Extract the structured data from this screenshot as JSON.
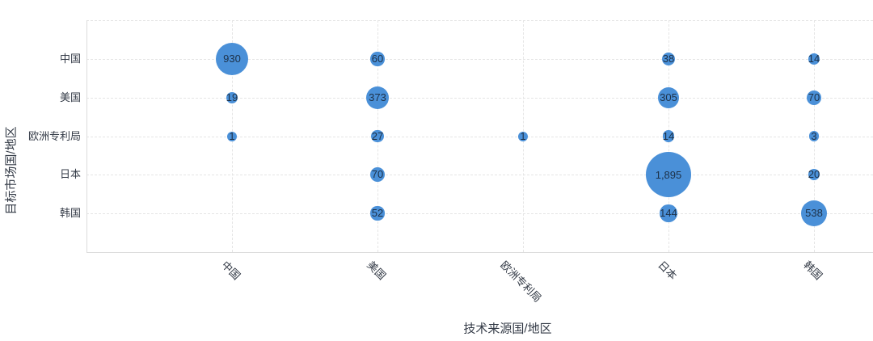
{
  "chart_data": {
    "type": "scatter",
    "subtype": "bubble-matrix",
    "title": "",
    "xlabel": "技术来源国/地区",
    "ylabel": "目标市场国/地区",
    "x_categories": [
      "中国",
      "美国",
      "欧洲专利局",
      "日本",
      "韩国"
    ],
    "y_categories": [
      "中国",
      "美国",
      "欧洲专利局",
      "日本",
      "韩国"
    ],
    "series": [
      {
        "y": "中国",
        "values": [
          930,
          60,
          null,
          38,
          14
        ]
      },
      {
        "y": "美国",
        "values": [
          19,
          373,
          null,
          305,
          70
        ]
      },
      {
        "y": "欧洲专利局",
        "values": [
          1,
          27,
          1,
          14,
          3
        ]
      },
      {
        "y": "日本",
        "values": [
          null,
          70,
          null,
          1895,
          20
        ]
      },
      {
        "y": "韩国",
        "values": [
          null,
          52,
          null,
          144,
          538
        ]
      }
    ],
    "value_label_format": "thousands-comma",
    "value_min": 1,
    "value_max": 1895,
    "grid": true,
    "legend": false
  },
  "colors": {
    "bubble_fill": "#4a90d8",
    "bubble_label": "#1d3148",
    "axis_text": "#333a46",
    "gridline": "#e5e5e5",
    "axis_line": "#dcdcdc",
    "background": "#ffffff"
  }
}
